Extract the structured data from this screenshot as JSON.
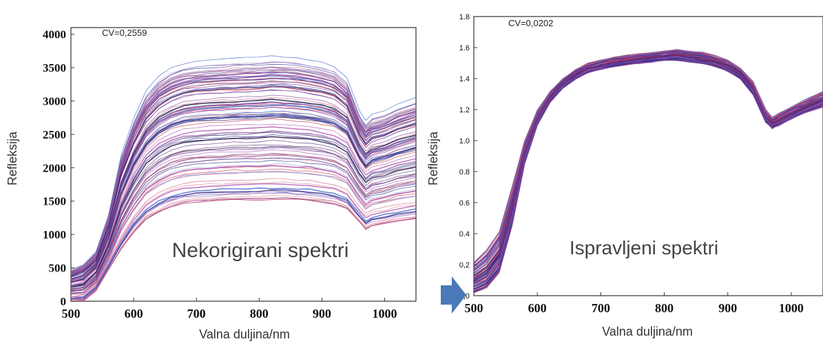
{
  "figure": {
    "arrow_color": "#4a7ab8"
  },
  "chart_data": [
    {
      "type": "line",
      "title": "",
      "annotation": "CV=0,2559",
      "inner_label": "Nekorigirani spektri",
      "xlabel": "Valna duljina/nm",
      "ylabel": "Refleksija",
      "xlim": [
        500,
        1050
      ],
      "ylim": [
        0,
        4100
      ],
      "x_ticks": [
        "500",
        "600",
        "700",
        "800",
        "900",
        "1000"
      ],
      "x_tick_values": [
        500,
        600,
        700,
        800,
        900,
        1000
      ],
      "y_ticks": [
        "0",
        "500",
        "1000",
        "1500",
        "2000",
        "2500",
        "3000",
        "3500",
        "4000"
      ],
      "y_tick_values": [
        0,
        500,
        1000,
        1500,
        2000,
        2500,
        3000,
        3500,
        4000
      ],
      "grid": false,
      "x": [
        500,
        520,
        540,
        560,
        580,
        600,
        620,
        640,
        660,
        680,
        700,
        720,
        740,
        760,
        780,
        800,
        820,
        840,
        860,
        880,
        900,
        920,
        940,
        960,
        970,
        980,
        1000,
        1020,
        1050
      ],
      "series_envelope": {
        "upper": [
          480,
          560,
          750,
          1300,
          2200,
          2750,
          3150,
          3380,
          3500,
          3570,
          3600,
          3620,
          3630,
          3640,
          3650,
          3660,
          3680,
          3670,
          3650,
          3620,
          3580,
          3520,
          3350,
          2850,
          2700,
          2800,
          2850,
          2950,
          3050
        ],
        "lower": [
          0,
          0,
          150,
          450,
          750,
          1000,
          1200,
          1300,
          1380,
          1430,
          1450,
          1460,
          1470,
          1480,
          1480,
          1480,
          1490,
          1490,
          1480,
          1470,
          1450,
          1420,
          1350,
          1150,
          1050,
          1100,
          1130,
          1170,
          1200
        ]
      },
      "series_count_estimate": 100,
      "series_colors": [
        "#2b2b8f",
        "#c0304a",
        "#7b3fa0",
        "#3a5fc8",
        "#d06080",
        "#5a2a7a",
        "#9a9ad0",
        "#e08090",
        "#222255",
        "#b050b0"
      ]
    },
    {
      "type": "line",
      "title": "",
      "annotation": "CV=0,0202",
      "inner_label": "Ispravljeni spektri",
      "xlabel": "Valna duljina/nm",
      "ylabel": "Refleksija",
      "xlim": [
        500,
        1050
      ],
      "ylim": [
        0,
        1.8
      ],
      "x_ticks": [
        "500",
        "600",
        "700",
        "800",
        "900",
        "1000"
      ],
      "x_tick_values": [
        500,
        600,
        700,
        800,
        900,
        1000
      ],
      "y_ticks": [
        "0,0",
        "0,2",
        "0.4",
        "0.6",
        "0.8",
        "1.0",
        "1.2",
        "1.4",
        "1.6",
        "1.8"
      ],
      "y_tick_values": [
        0,
        0.2,
        0.4,
        0.6,
        0.8,
        1.0,
        1.2,
        1.4,
        1.6,
        1.8
      ],
      "grid": false,
      "x": [
        500,
        520,
        540,
        560,
        580,
        600,
        620,
        640,
        660,
        680,
        700,
        720,
        740,
        760,
        780,
        800,
        820,
        840,
        860,
        880,
        900,
        920,
        940,
        960,
        970,
        980,
        1000,
        1020,
        1050
      ],
      "series_envelope": {
        "upper": [
          0.22,
          0.3,
          0.42,
          0.7,
          1.0,
          1.2,
          1.32,
          1.4,
          1.46,
          1.5,
          1.52,
          1.54,
          1.55,
          1.56,
          1.57,
          1.58,
          1.59,
          1.58,
          1.57,
          1.55,
          1.52,
          1.47,
          1.38,
          1.2,
          1.15,
          1.18,
          1.22,
          1.26,
          1.32
        ],
        "lower": [
          0.02,
          0.05,
          0.15,
          0.45,
          0.85,
          1.1,
          1.25,
          1.34,
          1.4,
          1.44,
          1.46,
          1.48,
          1.49,
          1.5,
          1.51,
          1.52,
          1.52,
          1.51,
          1.5,
          1.48,
          1.45,
          1.4,
          1.3,
          1.12,
          1.08,
          1.1,
          1.14,
          1.18,
          1.22
        ]
      },
      "series_count_estimate": 100,
      "series_colors": [
        "#2b2b8f",
        "#c0304a",
        "#7b3fa0",
        "#3a5fc8",
        "#d06080",
        "#5a2a7a",
        "#222255",
        "#b050b0"
      ]
    }
  ]
}
